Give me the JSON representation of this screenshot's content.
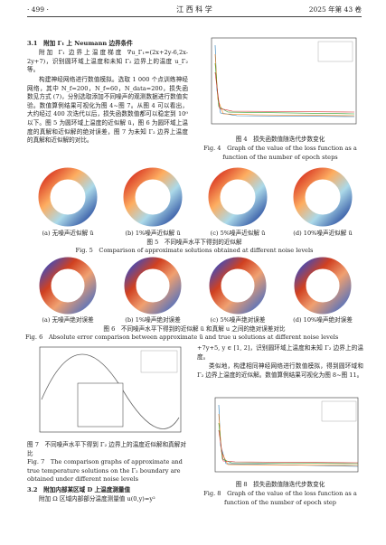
{
  "header": {
    "page": "· 499 ·",
    "journal": "江 西 科 学",
    "issue": "2025 年第 43 卷"
  },
  "section_3_1": {
    "title": "3.1　附加 Γ₁ 上 Neumann 边界条件",
    "paragraphs": [
      "附加 Γ₁ 边界上温度梯度 ∇u_Γ₁=(2x+2y-6,2x-2y+7)，识别圆环域上温度和未知 Γ₂ 边界上的温度 u_Γ₂ 等。",
      "构建神经网络进行数值模拟。选取 1 000 个点训练神经网络，其中 N_f=200，N_f=60，N_data=200，损失函数见方式 (7)，分别选取添加不同噪声的观测数据进行数值实验。数值算例结果可视化为图 4~图 7。从图 4 可以看出，大约经过 400 次迭代以后，损失函数数值都可以稳定到 10⁰ 以下。图 5 为圆环域上温度的近似解 ũ，图 6 为圆环域上温度的真解和近似解的绝对误差，图 7 为未知 Γ₂ 边界上温度的真解和近似解的对比。"
    ]
  },
  "fig4": {
    "caption_cn": "图 4　损失函数值随迭代步数变化",
    "caption_en": "Fig. 4　Graph of the value of the loss function as a function of the number of epoch steps"
  },
  "fig5": {
    "labels": [
      "(a) 无噪声近似解 ũ",
      "(b) 1%噪声近似解 ũ",
      "(c) 5%噪声近似解 ũ",
      "(d) 10%噪声近似解 ũ"
    ],
    "caption_cn": "图 5　不同噪声水平下得到的近似解",
    "caption_en": "Fig. 5　Comparison of approximate solutions obtained at different noise levels"
  },
  "fig6": {
    "labels": [
      "(a) 无噪声绝对误差",
      "(b) 1%噪声绝对误差",
      "(c) 5%噪声绝对误差",
      "(d) 10%噪声绝对误差"
    ],
    "caption_cn": "图 6　不同噪声水平下得到的近似解 ũ 和真解 u 之间的绝对误差对比",
    "caption_en": "Fig. 6　Absolute error comparison between approximate ũ and true u solutions at different noise levels"
  },
  "fig7": {
    "caption_cn": "图 7　不同噪声水平下得到 Γ₂ 边界上的温度近似解和真解对比",
    "caption_en": "Fig. 7　The comparison graphs of approximate and true temperature solutions on the Γ₂ boundary are obtained under different noise levels"
  },
  "section_3_2": {
    "title": "3.2　附加内部某区域 D 上温度测量值",
    "paragraph": "附加 Ω 区域内部部分温度测量值 u(0,y)=y²"
  },
  "right_text": [
    "+7y+5, y ∈ [1, 2]，识别圆环域上温度和未知 Γ₂ 边界上的温度。",
    "类似地，构建相同神经网络进行数值模拟，得到圆环域和 Γ₂ 边界上温度的近似解。数值算例结果可视化为图 8~图 11。"
  ],
  "fig8": {
    "caption_cn": "图 8　损失函数值随迭代步数变化",
    "caption_en": "Fig. 8　Graph of the value of the loss function as a function of the number of epoch step"
  }
}
